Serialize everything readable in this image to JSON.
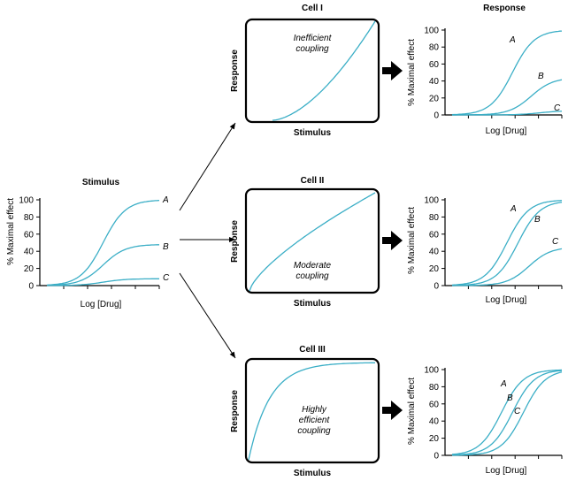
{
  "stimulus_panel": {
    "title": "Stimulus",
    "ylabel": "% Maximal effect",
    "xlabel": "Log [Drug]",
    "yticks": [
      "0",
      "20",
      "40",
      "60",
      "80",
      "100"
    ]
  },
  "response_header": "Response",
  "cells": [
    {
      "title": "Cell I",
      "coupling_lines": [
        "Inefficient",
        "coupling"
      ],
      "ylabel": "Response",
      "xlabel": "Stimulus"
    },
    {
      "title": "Cell II",
      "coupling_lines": [
        "Moderate",
        "coupling"
      ],
      "ylabel": "Response",
      "xlabel": "Stimulus"
    },
    {
      "title": "Cell III",
      "coupling_lines": [
        "Highly",
        "efficient",
        "coupling"
      ],
      "ylabel": "Response",
      "xlabel": "Stimulus"
    }
  ],
  "response_panels": [
    {
      "ylabel": "% Maximal effect",
      "xlabel": "Log [Drug]",
      "yticks": [
        "0",
        "20",
        "40",
        "60",
        "80",
        "100"
      ]
    },
    {
      "ylabel": "% Maximal effect",
      "xlabel": "Log [Drug]",
      "yticks": [
        "0",
        "20",
        "40",
        "60",
        "80",
        "100"
      ]
    },
    {
      "ylabel": "% Maximal effect",
      "xlabel": "Log [Drug]",
      "yticks": [
        "0",
        "20",
        "40",
        "60",
        "80",
        "100"
      ]
    }
  ],
  "colors": {
    "curve": "#3aaec6",
    "axis": "#000000"
  },
  "chart_data": [
    {
      "type": "line",
      "panel": "stimulus",
      "xlabel": "Log [Drug]",
      "ylabel": "% Maximal effect",
      "ylim": [
        0,
        100
      ],
      "series": [
        {
          "name": "A",
          "max": 100,
          "ec50": 0.5
        },
        {
          "name": "B",
          "max": 48,
          "ec50": 0.5
        },
        {
          "name": "C",
          "max": 8,
          "ec50": 0.5
        }
      ]
    },
    {
      "type": "line",
      "panel": "cell-I-transduction",
      "xlabel": "Stimulus",
      "ylabel": "Response",
      "shape": "inefficient-convex"
    },
    {
      "type": "line",
      "panel": "cell-II-transduction",
      "xlabel": "Stimulus",
      "ylabel": "Response",
      "shape": "moderate-near-linear"
    },
    {
      "type": "line",
      "panel": "cell-III-transduction",
      "xlabel": "Stimulus",
      "ylabel": "Response",
      "shape": "highly-efficient-saturating"
    },
    {
      "type": "line",
      "panel": "response-cell-I",
      "xlabel": "Log [Drug]",
      "ylabel": "% Maximal effect",
      "ylim": [
        0,
        100
      ],
      "series": [
        {
          "name": "A",
          "max": 100,
          "ec50": 0.55
        },
        {
          "name": "B",
          "max": 44,
          "ec50": 0.72
        },
        {
          "name": "C",
          "max": 5,
          "ec50": 0.8
        }
      ]
    },
    {
      "type": "line",
      "panel": "response-cell-II",
      "xlabel": "Log [Drug]",
      "ylabel": "% Maximal effect",
      "ylim": [
        0,
        100
      ],
      "series": [
        {
          "name": "A",
          "max": 100,
          "ec50": 0.5
        },
        {
          "name": "B",
          "max": 99,
          "ec50": 0.6
        },
        {
          "name": "C",
          "max": 45,
          "ec50": 0.7
        }
      ]
    },
    {
      "type": "line",
      "panel": "response-cell-III",
      "xlabel": "Log [Drug]",
      "ylabel": "% Maximal effect",
      "ylim": [
        0,
        100
      ],
      "series": [
        {
          "name": "A",
          "max": 100,
          "ec50": 0.45
        },
        {
          "name": "B",
          "max": 100,
          "ec50": 0.55
        },
        {
          "name": "C",
          "max": 100,
          "ec50": 0.65
        }
      ]
    }
  ]
}
